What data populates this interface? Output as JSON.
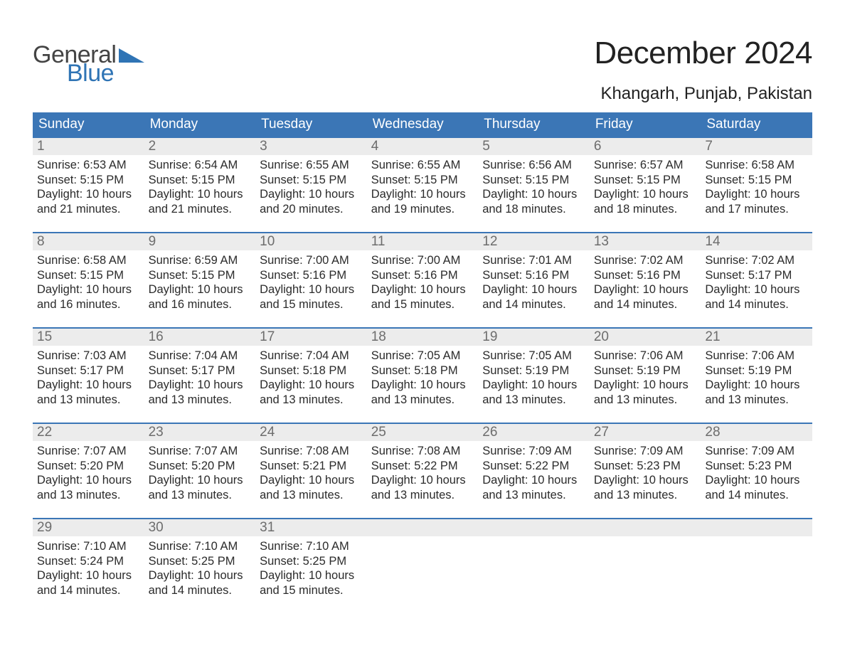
{
  "brand": {
    "word1": "General",
    "word2": "Blue",
    "tri_color": "#2f74b5"
  },
  "title": "December 2024",
  "location": "Khangarh, Punjab, Pakistan",
  "colors": {
    "header_bg": "#3b76b6",
    "header_text": "#ffffff",
    "daynum_bg": "#ececec",
    "daynum_text": "#6d6d6d",
    "body_text": "#2b2b2b",
    "border": "#3b76b6"
  },
  "day_headers": [
    "Sunday",
    "Monday",
    "Tuesday",
    "Wednesday",
    "Thursday",
    "Friday",
    "Saturday"
  ],
  "days": [
    {
      "n": "1",
      "sunrise": "6:53 AM",
      "sunset": "5:15 PM",
      "dl1": "10 hours",
      "dl2": "and 21 minutes."
    },
    {
      "n": "2",
      "sunrise": "6:54 AM",
      "sunset": "5:15 PM",
      "dl1": "10 hours",
      "dl2": "and 21 minutes."
    },
    {
      "n": "3",
      "sunrise": "6:55 AM",
      "sunset": "5:15 PM",
      "dl1": "10 hours",
      "dl2": "and 20 minutes."
    },
    {
      "n": "4",
      "sunrise": "6:55 AM",
      "sunset": "5:15 PM",
      "dl1": "10 hours",
      "dl2": "and 19 minutes."
    },
    {
      "n": "5",
      "sunrise": "6:56 AM",
      "sunset": "5:15 PM",
      "dl1": "10 hours",
      "dl2": "and 18 minutes."
    },
    {
      "n": "6",
      "sunrise": "6:57 AM",
      "sunset": "5:15 PM",
      "dl1": "10 hours",
      "dl2": "and 18 minutes."
    },
    {
      "n": "7",
      "sunrise": "6:58 AM",
      "sunset": "5:15 PM",
      "dl1": "10 hours",
      "dl2": "and 17 minutes."
    },
    {
      "n": "8",
      "sunrise": "6:58 AM",
      "sunset": "5:15 PM",
      "dl1": "10 hours",
      "dl2": "and 16 minutes."
    },
    {
      "n": "9",
      "sunrise": "6:59 AM",
      "sunset": "5:15 PM",
      "dl1": "10 hours",
      "dl2": "and 16 minutes."
    },
    {
      "n": "10",
      "sunrise": "7:00 AM",
      "sunset": "5:16 PM",
      "dl1": "10 hours",
      "dl2": "and 15 minutes."
    },
    {
      "n": "11",
      "sunrise": "7:00 AM",
      "sunset": "5:16 PM",
      "dl1": "10 hours",
      "dl2": "and 15 minutes."
    },
    {
      "n": "12",
      "sunrise": "7:01 AM",
      "sunset": "5:16 PM",
      "dl1": "10 hours",
      "dl2": "and 14 minutes."
    },
    {
      "n": "13",
      "sunrise": "7:02 AM",
      "sunset": "5:16 PM",
      "dl1": "10 hours",
      "dl2": "and 14 minutes."
    },
    {
      "n": "14",
      "sunrise": "7:02 AM",
      "sunset": "5:17 PM",
      "dl1": "10 hours",
      "dl2": "and 14 minutes."
    },
    {
      "n": "15",
      "sunrise": "7:03 AM",
      "sunset": "5:17 PM",
      "dl1": "10 hours",
      "dl2": "and 13 minutes."
    },
    {
      "n": "16",
      "sunrise": "7:04 AM",
      "sunset": "5:17 PM",
      "dl1": "10 hours",
      "dl2": "and 13 minutes."
    },
    {
      "n": "17",
      "sunrise": "7:04 AM",
      "sunset": "5:18 PM",
      "dl1": "10 hours",
      "dl2": "and 13 minutes."
    },
    {
      "n": "18",
      "sunrise": "7:05 AM",
      "sunset": "5:18 PM",
      "dl1": "10 hours",
      "dl2": "and 13 minutes."
    },
    {
      "n": "19",
      "sunrise": "7:05 AM",
      "sunset": "5:19 PM",
      "dl1": "10 hours",
      "dl2": "and 13 minutes."
    },
    {
      "n": "20",
      "sunrise": "7:06 AM",
      "sunset": "5:19 PM",
      "dl1": "10 hours",
      "dl2": "and 13 minutes."
    },
    {
      "n": "21",
      "sunrise": "7:06 AM",
      "sunset": "5:19 PM",
      "dl1": "10 hours",
      "dl2": "and 13 minutes."
    },
    {
      "n": "22",
      "sunrise": "7:07 AM",
      "sunset": "5:20 PM",
      "dl1": "10 hours",
      "dl2": "and 13 minutes."
    },
    {
      "n": "23",
      "sunrise": "7:07 AM",
      "sunset": "5:20 PM",
      "dl1": "10 hours",
      "dl2": "and 13 minutes."
    },
    {
      "n": "24",
      "sunrise": "7:08 AM",
      "sunset": "5:21 PM",
      "dl1": "10 hours",
      "dl2": "and 13 minutes."
    },
    {
      "n": "25",
      "sunrise": "7:08 AM",
      "sunset": "5:22 PM",
      "dl1": "10 hours",
      "dl2": "and 13 minutes."
    },
    {
      "n": "26",
      "sunrise": "7:09 AM",
      "sunset": "5:22 PM",
      "dl1": "10 hours",
      "dl2": "and 13 minutes."
    },
    {
      "n": "27",
      "sunrise": "7:09 AM",
      "sunset": "5:23 PM",
      "dl1": "10 hours",
      "dl2": "and 13 minutes."
    },
    {
      "n": "28",
      "sunrise": "7:09 AM",
      "sunset": "5:23 PM",
      "dl1": "10 hours",
      "dl2": "and 14 minutes."
    },
    {
      "n": "29",
      "sunrise": "7:10 AM",
      "sunset": "5:24 PM",
      "dl1": "10 hours",
      "dl2": "and 14 minutes."
    },
    {
      "n": "30",
      "sunrise": "7:10 AM",
      "sunset": "5:25 PM",
      "dl1": "10 hours",
      "dl2": "and 14 minutes."
    },
    {
      "n": "31",
      "sunrise": "7:10 AM",
      "sunset": "5:25 PM",
      "dl1": "10 hours",
      "dl2": "and 15 minutes."
    }
  ],
  "labels": {
    "sunrise": "Sunrise: ",
    "sunset": "Sunset: ",
    "daylight": "Daylight: "
  },
  "layout": {
    "start_weekday": 0,
    "weeks": 5,
    "trailing_blanks": 4
  }
}
